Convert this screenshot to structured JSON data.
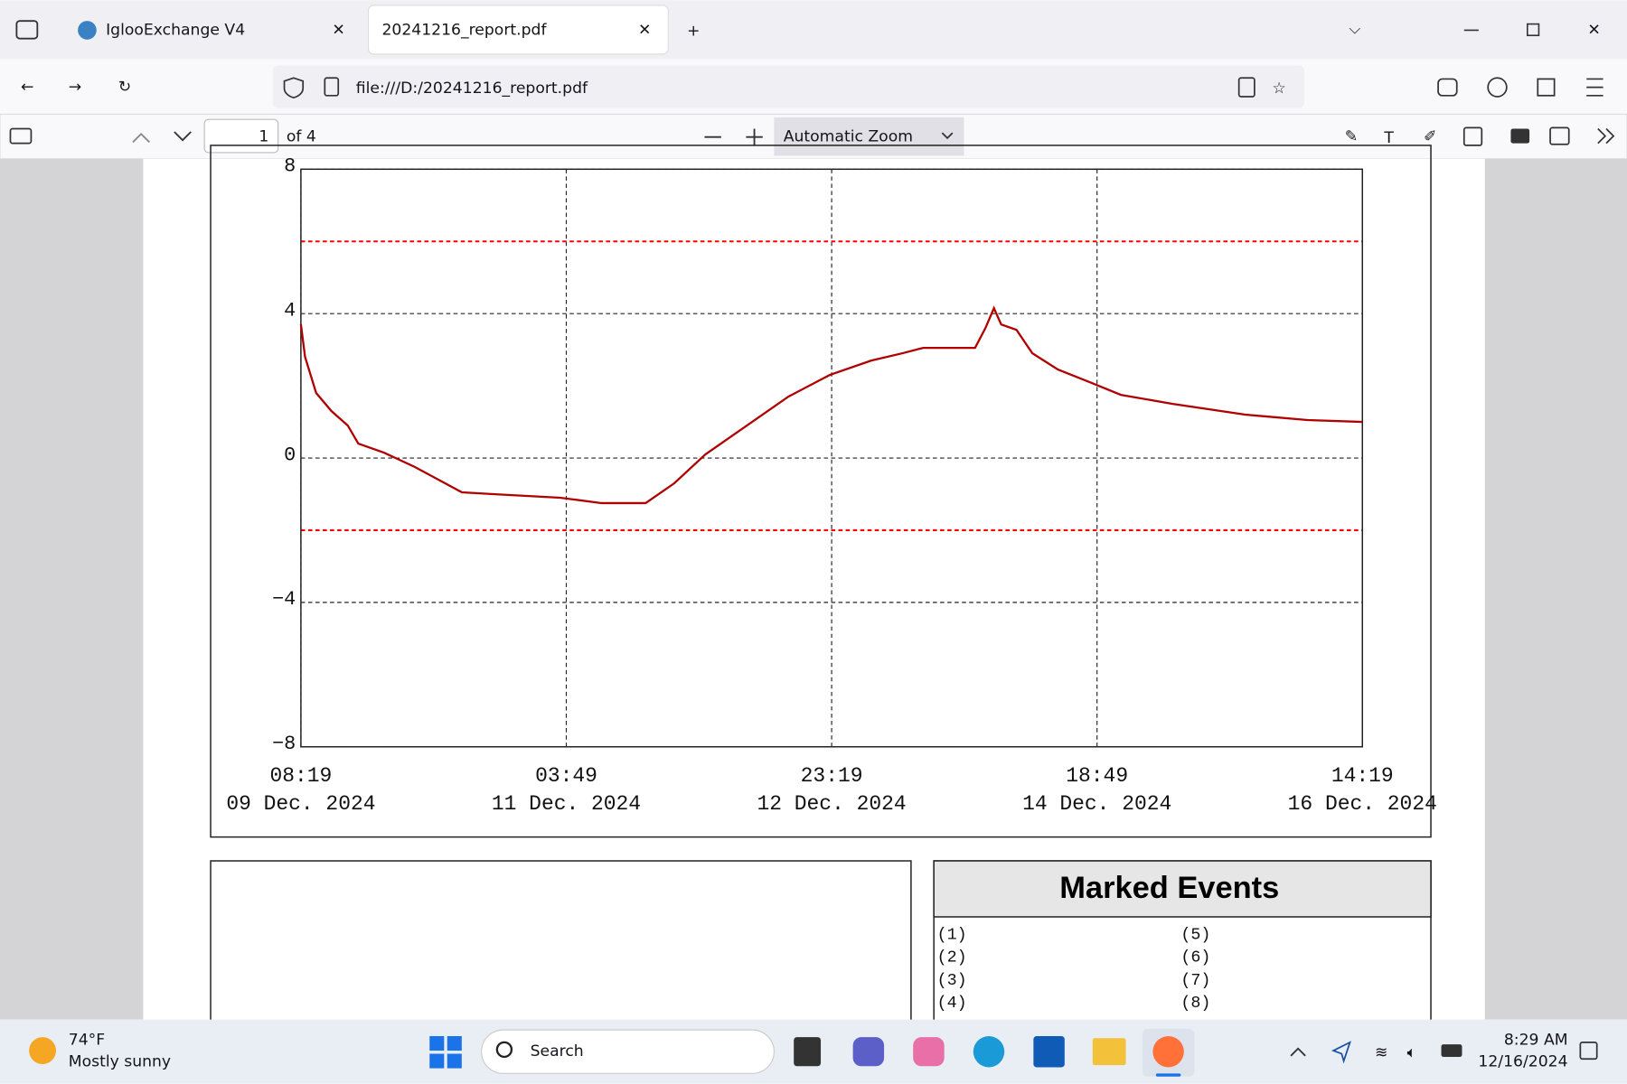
{
  "browser": {
    "tabs": [
      "IglooExchange V4",
      "20241216_report.pdf"
    ],
    "url": "file:///D:/20241216_report.pdf"
  },
  "pdf_toolbar": {
    "page": "1",
    "page_count": "of 4",
    "zoom": "Automatic Zoom"
  },
  "chart_data": {
    "type": "line",
    "color": "#b00000",
    "x": [
      "2024-12-09T08:19",
      "2024-12-09T09:00",
      "2024-12-09T10:49",
      "2024-12-09T13:19",
      "2024-12-09T16:00",
      "2024-12-09T17:43",
      "2024-12-09T21:55",
      "2024-12-10T03:01",
      "2024-12-10T10:43",
      "2024-12-10T15:49",
      "2024-12-11T02:49",
      "2024-12-11T09:37",
      "2024-12-11T16:49",
      "2024-12-11T21:31",
      "2024-12-12T02:37",
      "2024-12-12T09:25",
      "2024-12-12T16:13",
      "2024-12-12T23:01",
      "2024-12-13T05:49",
      "2024-12-13T10:55",
      "2024-12-13T14:19",
      "2024-12-13T22:49",
      "2024-12-14T00:31",
      "2024-12-14T01:55",
      "2024-12-14T03:07",
      "2024-12-14T05:37",
      "2024-12-14T08:13",
      "2024-12-14T12:25",
      "2024-12-14T17:37",
      "2024-12-14T22:43",
      "2024-12-15T07:13",
      "2024-12-15T19:07",
      "2024-12-16T05:19",
      "2024-12-16T14:19"
    ],
    "values": [
      3.7,
      2.8,
      1.8,
      1.3,
      0.9,
      0.4,
      0.15,
      -0.25,
      -0.95,
      -1.0,
      -1.1,
      -1.25,
      -1.25,
      -0.7,
      0.1,
      0.9,
      1.7,
      2.3,
      2.7,
      2.9,
      3.05,
      3.05,
      3.6,
      4.15,
      3.7,
      3.55,
      2.9,
      2.45,
      2.1,
      1.75,
      1.5,
      1.2,
      1.05,
      1.0
    ],
    "xlim": [
      "2024-12-09T08:19",
      "2024-12-16T14:19"
    ],
    "xticks": [
      {
        "value": "2024-12-09T08:19",
        "label": [
          "08:19",
          "09 Dec. 2024"
        ]
      },
      {
        "value": "2024-12-11T03:49",
        "label": [
          "03:49",
          "11 Dec. 2024"
        ]
      },
      {
        "value": "2024-12-12T23:19",
        "label": [
          "23:19",
          "12 Dec. 2024"
        ]
      },
      {
        "value": "2024-12-14T18:49",
        "label": [
          "18:49",
          "14 Dec. 2024"
        ]
      },
      {
        "value": "2024-12-16T14:19",
        "label": [
          "14:19",
          "16 Dec. 2024"
        ]
      }
    ],
    "ylim": [
      -8,
      8
    ],
    "yticks": [
      {
        "value": -8,
        "label": "−8"
      },
      {
        "value": -4,
        "label": "−4"
      },
      0,
      4,
      8
    ],
    "grid": true,
    "reference_lines": [
      {
        "value": 6,
        "color": "#ff0000"
      },
      {
        "value": -2,
        "color": "#ff0000"
      }
    ]
  },
  "events": {
    "title": "Marked Events",
    "items": [
      "(1)",
      "(2)",
      "(3)",
      "(4)",
      "(5)",
      "(6)",
      "(7)",
      "(8)"
    ]
  },
  "taskbar": {
    "temperature": "74°F",
    "weather": "Mostly sunny",
    "search": "Search",
    "time": "8:29 AM",
    "date": "12/16/2024"
  }
}
